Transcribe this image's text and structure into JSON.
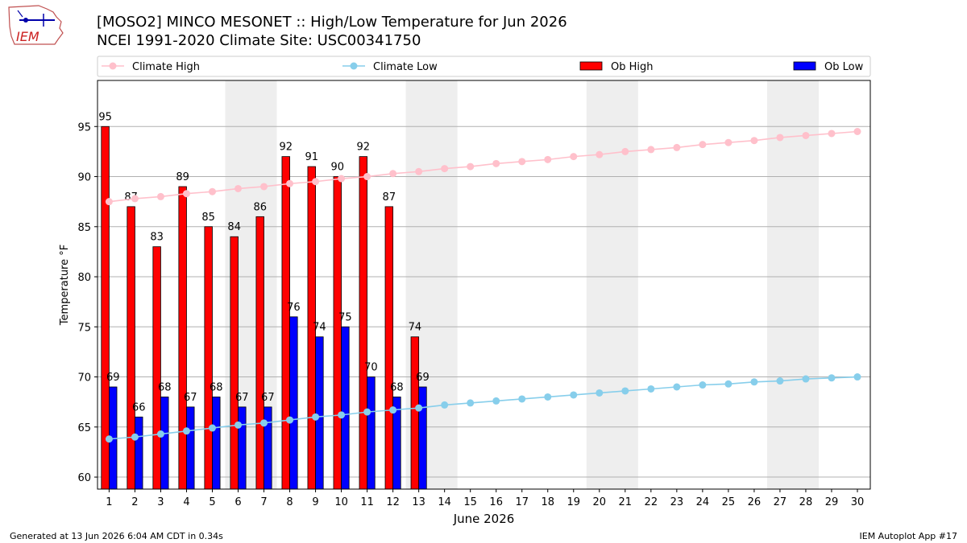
{
  "header": {
    "title_line1": "[MOSO2] MINCO MESONET :: High/Low Temperature for Jun 2026",
    "title_line2": "NCEI 1991-2020 Climate Site: USC00341750",
    "logo_text": "IEM"
  },
  "footer": {
    "generated": "Generated at 13 Jun 2026 6:04 AM CDT in 0.34s",
    "app": "IEM Autoplot App #17"
  },
  "colors": {
    "ob_high": "#ff0000",
    "ob_low": "#0000ff",
    "climate_high": "#ffc0cb",
    "climate_low": "#87ceeb",
    "weekend_band": "#eeeeee",
    "grid": "#b0b0b0"
  },
  "chart_data": {
    "type": "bar",
    "xlabel": "June 2026",
    "ylabel": "Temperature °F",
    "ylim": [
      58.8,
      99.6
    ],
    "yticks": [
      60,
      65,
      70,
      75,
      80,
      85,
      90,
      95
    ],
    "grid": "horizontal",
    "legend_position": "top",
    "days": [
      1,
      2,
      3,
      4,
      5,
      6,
      7,
      8,
      9,
      10,
      11,
      12,
      13,
      14,
      15,
      16,
      17,
      18,
      19,
      20,
      21,
      22,
      23,
      24,
      25,
      26,
      27,
      28,
      29,
      30
    ],
    "weekend_bands": [
      [
        6,
        7
      ],
      [
        13,
        14
      ],
      [
        20,
        21
      ],
      [
        27,
        28
      ]
    ],
    "series": [
      {
        "name": "Climate High",
        "kind": "line",
        "values": [
          87.5,
          87.8,
          88.0,
          88.3,
          88.5,
          88.8,
          89.0,
          89.3,
          89.5,
          89.8,
          90.0,
          90.3,
          90.5,
          90.8,
          91.0,
          91.3,
          91.5,
          91.7,
          92.0,
          92.2,
          92.5,
          92.7,
          92.9,
          93.2,
          93.4,
          93.6,
          93.9,
          94.1,
          94.3,
          94.5
        ]
      },
      {
        "name": "Climate Low",
        "kind": "line",
        "values": [
          63.8,
          64.0,
          64.3,
          64.6,
          64.9,
          65.2,
          65.4,
          65.7,
          66.0,
          66.2,
          66.5,
          66.7,
          66.9,
          67.2,
          67.4,
          67.6,
          67.8,
          68.0,
          68.2,
          68.4,
          68.6,
          68.8,
          69.0,
          69.2,
          69.3,
          69.5,
          69.6,
          69.8,
          69.9,
          70.0
        ]
      },
      {
        "name": "Ob High",
        "kind": "bar",
        "values": [
          95,
          87,
          83,
          89,
          85,
          84,
          86,
          92,
          91,
          90,
          92,
          87,
          74
        ]
      },
      {
        "name": "Ob Low",
        "kind": "bar",
        "values": [
          69,
          66,
          68,
          67,
          68,
          67,
          67,
          76,
          74,
          75,
          70,
          68,
          69
        ]
      }
    ],
    "bar_labels": {
      "high": [
        95,
        87,
        83,
        89,
        85,
        84,
        86,
        92,
        91,
        90,
        92,
        87,
        74
      ],
      "low": [
        69,
        66,
        68,
        67,
        68,
        67,
        67,
        76,
        74,
        75,
        70,
        68,
        69
      ]
    }
  }
}
